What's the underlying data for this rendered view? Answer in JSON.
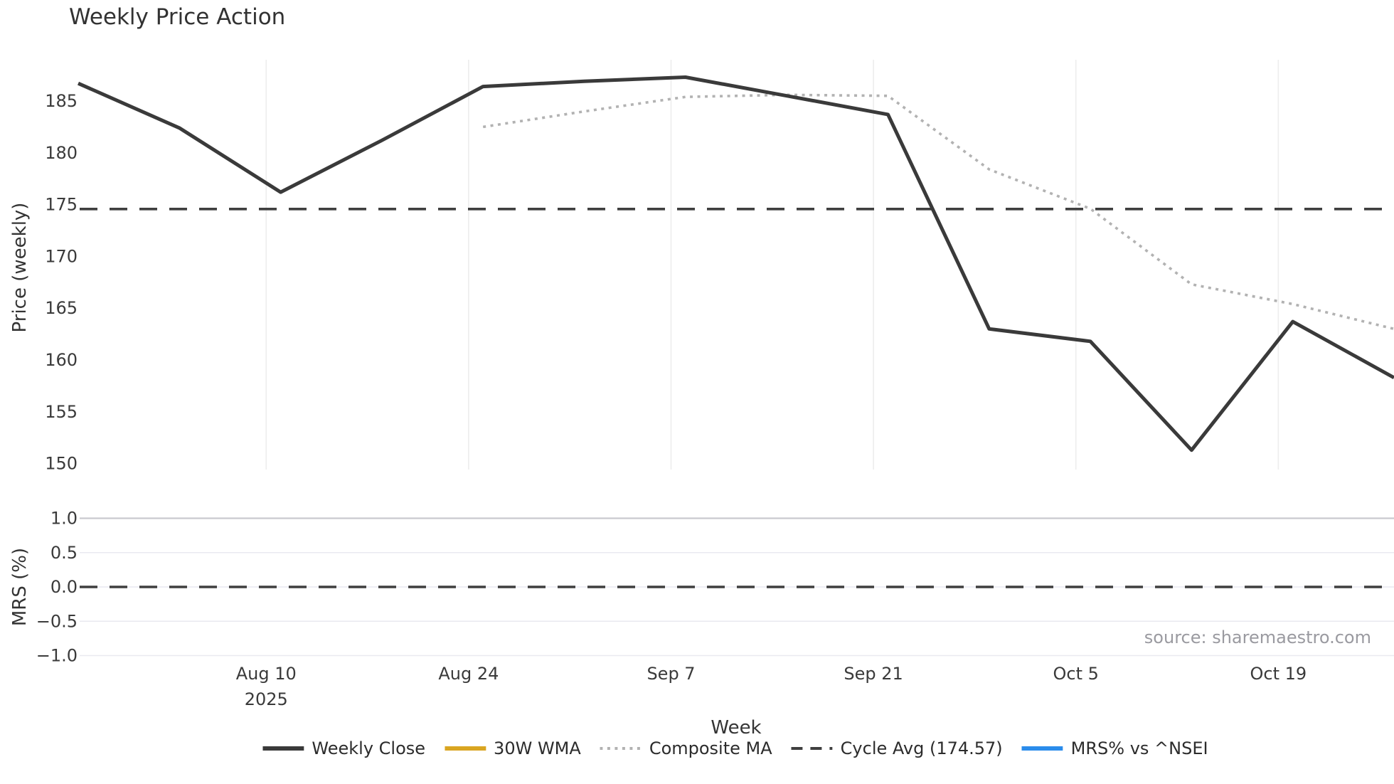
{
  "chart_data": {
    "type": "line",
    "title": "Weekly Price Action",
    "xlabel": "Week",
    "source": "source: sharemaestro.com",
    "xticks": [
      {
        "label": "Aug 10",
        "sublabel": "2025",
        "day": 13
      },
      {
        "label": "Aug 24",
        "day": 27
      },
      {
        "label": "Sep 7",
        "day": 41
      },
      {
        "label": "Sep 21",
        "day": 55
      },
      {
        "label": "Oct 5",
        "day": 69
      },
      {
        "label": "Oct 19",
        "day": 83
      }
    ],
    "panels": [
      {
        "name": "price",
        "ylabel": "Price (weekly)",
        "yticks": [
          185,
          180,
          175,
          170,
          165,
          160,
          155,
          150
        ],
        "ylim": [
          149.1,
          189.0
        ],
        "cycle_avg": 174.57,
        "grid": "vertical-only",
        "series": [
          {
            "name": "Weekly Close",
            "color": "#3a3a3a",
            "style": "solid",
            "width": 5,
            "x_days": [
              0,
              7,
              14,
              21,
              28,
              35,
              42,
              49,
              56,
              63,
              70,
              77,
              84,
              91
            ],
            "values": [
              186.7,
              182.4,
              176.2,
              181.2,
              186.4,
              186.9,
              187.3,
              185.5,
              183.7,
              163.0,
              161.8,
              151.3,
              163.7,
              158.3
            ]
          },
          {
            "name": "30W WMA",
            "color": "#D9A521",
            "style": "solid",
            "width": 5,
            "x_days": [],
            "values": []
          },
          {
            "name": "Composite MA",
            "color": "#b2b2b2",
            "style": "dotted",
            "width": 3.6,
            "x_days": [
              28,
              35,
              42,
              49,
              56,
              63,
              70,
              77,
              84,
              91
            ],
            "values": [
              182.5,
              184.0,
              185.4,
              185.6,
              185.5,
              178.4,
              174.6,
              167.3,
              165.4,
              163.0
            ]
          },
          {
            "name": "Cycle Avg (174.57)",
            "color": "#3f3f3f",
            "style": "dashed",
            "width": 3.6,
            "constant": 174.57
          }
        ]
      },
      {
        "name": "mrs",
        "ylabel": "MRS (%)",
        "yticks": [
          1.0,
          0.5,
          0.0,
          -0.5,
          -1.0
        ],
        "ylim": [
          -1.21,
          1.02
        ],
        "grid": "horizontal-only",
        "zero_line_dashed": true,
        "series": [
          {
            "name": "MRS% vs ^NSEI",
            "color": "#2B8CEB",
            "style": "solid",
            "width": 5,
            "x_days": [],
            "values": []
          }
        ]
      }
    ],
    "legend": [
      {
        "label": "Weekly Close",
        "color": "#3a3a3a",
        "style": "solid"
      },
      {
        "label": "30W WMA",
        "color": "#D9A521",
        "style": "solid"
      },
      {
        "label": "Composite MA",
        "color": "#b2b2b2",
        "style": "dotted"
      },
      {
        "label": "Cycle Avg (174.57)",
        "color": "#3f3f3f",
        "style": "dashed"
      },
      {
        "label": "MRS% vs ^NSEI",
        "color": "#2B8CEB",
        "style": "solid"
      }
    ]
  }
}
